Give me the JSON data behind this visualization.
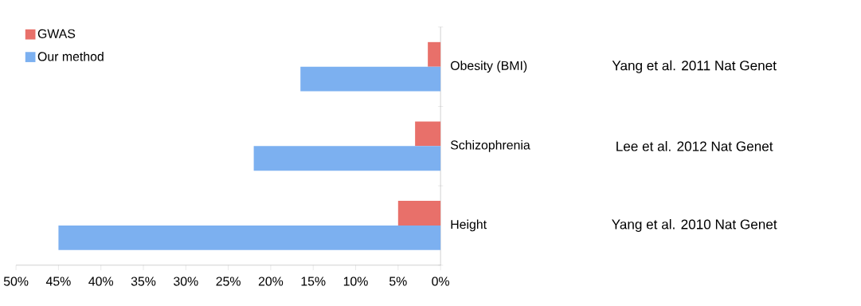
{
  "chart_data": {
    "type": "bar",
    "orientation": "horizontal",
    "categories": [
      "Obesity (BMI)",
      "Schizophrenia",
      "Height"
    ],
    "series": [
      {
        "name": "GWAS",
        "color": "#e8706a",
        "values": [
          1.5,
          3,
          5
        ]
      },
      {
        "name": "Our method",
        "color": "#7cb0f0",
        "values": [
          16.5,
          22,
          45
        ]
      }
    ],
    "xlim": [
      50,
      0
    ],
    "xticks": [
      {
        "value": 50,
        "label": "50%"
      },
      {
        "value": 45,
        "label": "45%"
      },
      {
        "value": 40,
        "label": "40%"
      },
      {
        "value": 35,
        "label": "35%"
      },
      {
        "value": 30,
        "label": "30%"
      },
      {
        "value": 25,
        "label": "25%"
      },
      {
        "value": 20,
        "label": "20%"
      },
      {
        "value": 15,
        "label": "15%"
      },
      {
        "value": 10,
        "label": "10%"
      },
      {
        "value": 5,
        "label": "5%"
      },
      {
        "value": 0,
        "label": "0%"
      }
    ],
    "annotations": [
      "Yang et al. 2011 Nat Genet",
      "Lee et al. 2012 Nat Genet",
      "Yang et al. 2010 Nat Genet"
    ],
    "legend": "top left",
    "grid": false
  }
}
